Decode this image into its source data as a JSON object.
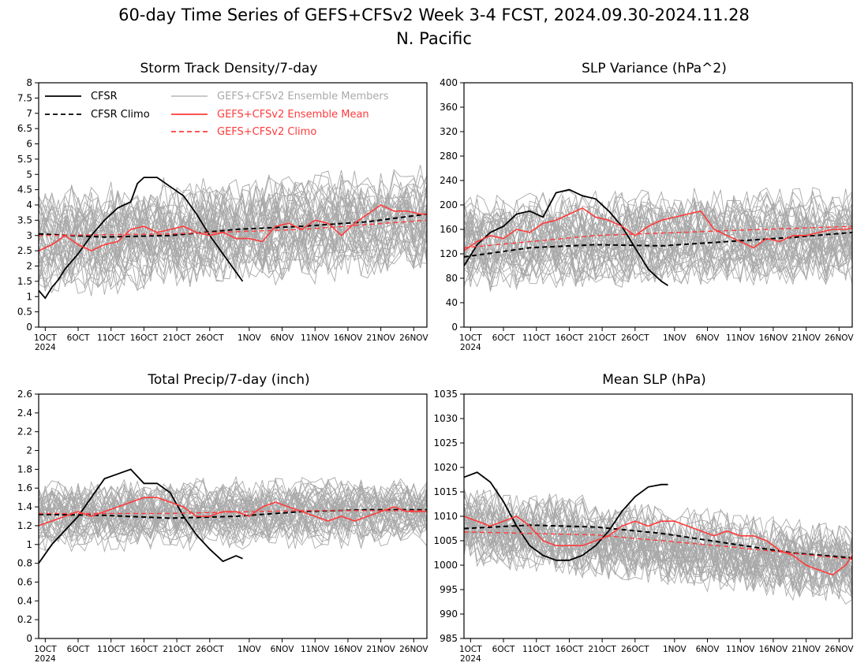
{
  "page": {
    "title_line1": "60-day Time Series of GEFS+CFSv2 Week 3-4 FCST, 2024.09.30-2024.11.28",
    "title_line2": "N. Pacific"
  },
  "colors": {
    "cfsr": "#000000",
    "members": "#a9a9a9",
    "ens_mean": "#ff3b3b",
    "ens_climo": "#ff3b3b"
  },
  "legend": {
    "cfsr": "CFSR",
    "cfsr_climo": "CFSR Climo",
    "members": "GEFS+CFSv2 Ensemble Members",
    "ens_mean": "GEFS+CFSv2 Ensemble Mean",
    "ens_climo": "GEFS+CFSv2 Climo"
  },
  "x_axis": {
    "day_range": [
      0,
      59
    ],
    "ticks": [
      {
        "day": 1,
        "label": "1OCT"
      },
      {
        "day": 6,
        "label": "6OCT"
      },
      {
        "day": 11,
        "label": "11OCT"
      },
      {
        "day": 16,
        "label": "16OCT"
      },
      {
        "day": 21,
        "label": "21OCT"
      },
      {
        "day": 26,
        "label": "26OCT"
      },
      {
        "day": 32,
        "label": "1NOV"
      },
      {
        "day": 37,
        "label": "6NOV"
      },
      {
        "day": 42,
        "label": "11NOV"
      },
      {
        "day": 47,
        "label": "16NOV"
      },
      {
        "day": 52,
        "label": "21NOV"
      },
      {
        "day": 57,
        "label": "26NOV"
      }
    ],
    "year_label": "2024"
  },
  "chart_data": [
    {
      "type": "line",
      "title": "Storm Track Density/7-day",
      "ylim": [
        0,
        8
      ],
      "yticks": [
        "0",
        "0.5",
        "1",
        "1.5",
        "2",
        "2.5",
        "3",
        "3.5",
        "4",
        "4.5",
        "5",
        "5.5",
        "6",
        "6.5",
        "7",
        "7.5",
        "8"
      ],
      "yvals": [
        0,
        0.5,
        1,
        1.5,
        2,
        2.5,
        3,
        3.5,
        4,
        4.5,
        5,
        5.5,
        6,
        6.5,
        7,
        7.5,
        8
      ],
      "members": {
        "count": 40,
        "start": 2.8,
        "end": 3.5,
        "spread": 1.0,
        "jitter": 0.9
      },
      "series": [
        {
          "name": "CFSR",
          "kind": "cfsr",
          "x": [
            0,
            1,
            2,
            3,
            4,
            6,
            8,
            10,
            12,
            14,
            15,
            16,
            17,
            18,
            20,
            22,
            24,
            26,
            28,
            30,
            31
          ],
          "y": [
            1.2,
            0.95,
            1.3,
            1.55,
            1.9,
            2.4,
            3.0,
            3.5,
            3.9,
            4.1,
            4.7,
            4.9,
            4.9,
            4.9,
            4.6,
            4.3,
            3.7,
            3.0,
            2.4,
            1.8,
            1.5
          ]
        },
        {
          "name": "CFSR Climo",
          "kind": "cfsr_climo",
          "x": [
            0,
            10,
            20,
            30,
            40,
            50,
            59
          ],
          "y": [
            3.05,
            2.95,
            3.0,
            3.2,
            3.3,
            3.45,
            3.7
          ]
        },
        {
          "name": "GEFS+CFSv2 Ensemble Mean",
          "kind": "ens_mean",
          "x": [
            0,
            2,
            4,
            6,
            8,
            10,
            12,
            14,
            16,
            18,
            20,
            22,
            24,
            26,
            28,
            30,
            32,
            34,
            36,
            38,
            40,
            42,
            44,
            46,
            48,
            50,
            52,
            54,
            56,
            58,
            59
          ],
          "y": [
            2.5,
            2.7,
            3.0,
            2.7,
            2.5,
            2.7,
            2.8,
            3.2,
            3.3,
            3.1,
            3.2,
            3.3,
            3.1,
            3.0,
            3.1,
            2.9,
            2.9,
            2.8,
            3.3,
            3.4,
            3.2,
            3.5,
            3.4,
            3.0,
            3.4,
            3.7,
            4.0,
            3.8,
            3.8,
            3.7,
            3.7
          ]
        },
        {
          "name": "GEFS+CFSv2 Climo",
          "kind": "ens_climo",
          "x": [
            0,
            20,
            40,
            59
          ],
          "y": [
            3.0,
            3.05,
            3.2,
            3.5
          ]
        }
      ],
      "show_legend": true
    },
    {
      "type": "line",
      "title": "SLP Variance (hPa^2)",
      "ylim": [
        0,
        400
      ],
      "yticks": [
        "0",
        "40",
        "80",
        "120",
        "160",
        "200",
        "240",
        "280",
        "320",
        "360",
        "400"
      ],
      "yvals": [
        0,
        40,
        80,
        120,
        160,
        200,
        240,
        280,
        320,
        360,
        400
      ],
      "members": {
        "count": 40,
        "start": 140,
        "end": 150,
        "spread": 45,
        "jitter": 40
      },
      "series": [
        {
          "name": "CFSR",
          "kind": "cfsr",
          "x": [
            0,
            2,
            4,
            6,
            8,
            10,
            12,
            14,
            16,
            18,
            20,
            22,
            24,
            26,
            28,
            30,
            31
          ],
          "y": [
            100,
            135,
            155,
            165,
            185,
            190,
            180,
            220,
            225,
            215,
            210,
            190,
            165,
            130,
            95,
            75,
            68
          ]
        },
        {
          "name": "CFSR Climo",
          "kind": "cfsr_climo",
          "x": [
            0,
            10,
            20,
            30,
            40,
            50,
            59
          ],
          "y": [
            115,
            130,
            135,
            133,
            140,
            147,
            155
          ]
        },
        {
          "name": "GEFS+CFSv2 Ensemble Mean",
          "kind": "ens_mean",
          "x": [
            0,
            2,
            4,
            6,
            8,
            10,
            12,
            14,
            16,
            18,
            20,
            22,
            24,
            26,
            28,
            30,
            32,
            34,
            36,
            38,
            40,
            42,
            44,
            46,
            48,
            50,
            52,
            54,
            56,
            58,
            59
          ],
          "y": [
            125,
            140,
            150,
            145,
            160,
            155,
            170,
            175,
            185,
            195,
            180,
            175,
            165,
            150,
            165,
            175,
            180,
            185,
            190,
            160,
            150,
            140,
            130,
            145,
            140,
            150,
            150,
            155,
            160,
            160,
            162
          ]
        },
        {
          "name": "GEFS+CFSv2 Climo",
          "kind": "ens_climo",
          "x": [
            0,
            20,
            40,
            59
          ],
          "y": [
            130,
            150,
            158,
            165
          ]
        }
      ],
      "show_legend": false
    },
    {
      "type": "line",
      "title": "Total Precip/7-day (inch)",
      "ylim": [
        0,
        2.6
      ],
      "yticks": [
        "0",
        "0.2",
        "0.4",
        "0.6",
        "0.8",
        "1",
        "1.2",
        "1.4",
        "1.6",
        "1.8",
        "2",
        "2.2",
        "2.4",
        "2.6"
      ],
      "yvals": [
        0,
        0.2,
        0.4,
        0.6,
        0.8,
        1,
        1.2,
        1.4,
        1.6,
        1.8,
        2,
        2.2,
        2.4,
        2.6
      ],
      "members": {
        "count": 40,
        "start": 1.3,
        "end": 1.35,
        "spread": 0.2,
        "jitter": 0.2
      },
      "series": [
        {
          "name": "CFSR",
          "kind": "cfsr",
          "x": [
            0,
            2,
            4,
            6,
            8,
            10,
            12,
            14,
            16,
            18,
            20,
            22,
            24,
            26,
            28,
            30,
            31
          ],
          "y": [
            0.8,
            1.0,
            1.15,
            1.3,
            1.5,
            1.7,
            1.75,
            1.8,
            1.65,
            1.65,
            1.55,
            1.3,
            1.1,
            0.95,
            0.82,
            0.88,
            0.85
          ]
        },
        {
          "name": "CFSR Climo",
          "kind": "cfsr_climo",
          "x": [
            0,
            10,
            20,
            30,
            40,
            50,
            59
          ],
          "y": [
            1.32,
            1.31,
            1.28,
            1.3,
            1.35,
            1.37,
            1.37
          ]
        },
        {
          "name": "GEFS+CFSv2 Ensemble Mean",
          "kind": "ens_mean",
          "x": [
            0,
            2,
            4,
            6,
            8,
            10,
            12,
            14,
            16,
            18,
            20,
            22,
            24,
            26,
            28,
            30,
            32,
            34,
            36,
            38,
            40,
            42,
            44,
            46,
            48,
            50,
            52,
            54,
            56,
            58,
            59
          ],
          "y": [
            1.2,
            1.25,
            1.3,
            1.35,
            1.3,
            1.35,
            1.4,
            1.45,
            1.5,
            1.5,
            1.45,
            1.4,
            1.3,
            1.3,
            1.35,
            1.35,
            1.3,
            1.4,
            1.45,
            1.4,
            1.35,
            1.3,
            1.25,
            1.3,
            1.25,
            1.3,
            1.35,
            1.4,
            1.35,
            1.35,
            1.35
          ]
        },
        {
          "name": "GEFS+CFSv2 Climo",
          "kind": "ens_climo",
          "x": [
            0,
            20,
            40,
            59
          ],
          "y": [
            1.33,
            1.33,
            1.36,
            1.36
          ]
        }
      ],
      "show_legend": false
    },
    {
      "type": "line",
      "title": "Mean SLP (hPa)",
      "ylim": [
        985,
        1035
      ],
      "yticks": [
        "985",
        "990",
        "995",
        "1000",
        "1005",
        "1010",
        "1015",
        "1020",
        "1025",
        "1030",
        "1035"
      ],
      "yvals": [
        985,
        990,
        995,
        1000,
        1005,
        1010,
        1015,
        1020,
        1025,
        1030,
        1035
      ],
      "members": {
        "count": 40,
        "start": 1008,
        "end": 1000,
        "spread": 4,
        "jitter": 5
      },
      "series": [
        {
          "name": "CFSR",
          "kind": "cfsr",
          "x": [
            0,
            2,
            4,
            6,
            8,
            10,
            12,
            14,
            16,
            18,
            20,
            22,
            24,
            26,
            28,
            30,
            31
          ],
          "y": [
            1018,
            1019,
            1017,
            1013,
            1008,
            1004,
            1002,
            1001,
            1001,
            1002,
            1004,
            1007,
            1011,
            1014,
            1016,
            1016.5,
            1016.5
          ]
        },
        {
          "name": "CFSR Climo",
          "kind": "cfsr_climo",
          "x": [
            0,
            10,
            20,
            30,
            40,
            50,
            59
          ],
          "y": [
            1007.5,
            1008.2,
            1007.8,
            1006.5,
            1004.5,
            1002.5,
            1001.5
          ]
        },
        {
          "name": "GEFS+CFSv2 Ensemble Mean",
          "kind": "ens_mean",
          "x": [
            0,
            2,
            4,
            6,
            8,
            10,
            12,
            14,
            16,
            18,
            20,
            22,
            24,
            26,
            28,
            30,
            32,
            34,
            36,
            38,
            40,
            42,
            44,
            46,
            48,
            50,
            52,
            54,
            56,
            58,
            59
          ],
          "y": [
            1010,
            1009,
            1008,
            1009,
            1010,
            1008,
            1005,
            1004,
            1004,
            1004,
            1005,
            1006,
            1008,
            1009,
            1008,
            1009,
            1009,
            1008,
            1007,
            1006,
            1007,
            1006,
            1006,
            1005,
            1003,
            1002,
            1000,
            999,
            998,
            1000,
            1002
          ]
        },
        {
          "name": "GEFS+CFSv2 Climo",
          "kind": "ens_climo",
          "x": [
            0,
            20,
            40,
            59
          ],
          "y": [
            1006.8,
            1006.2,
            1003.8,
            1001.2
          ]
        }
      ],
      "show_legend": false
    }
  ]
}
